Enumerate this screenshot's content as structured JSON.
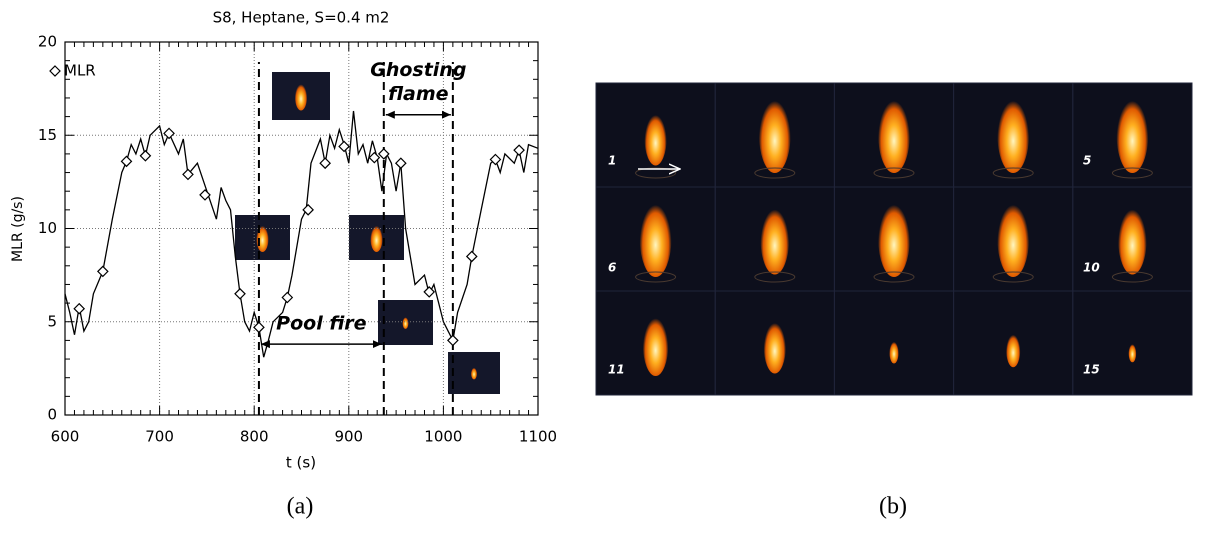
{
  "chart_data": {
    "type": "line",
    "title": "S8, Heptane, S=0.4 m2",
    "xlabel": "t (s)",
    "ylabel": "MLR (g/s)",
    "xlim": [
      600,
      1100
    ],
    "xticks": [
      600,
      700,
      800,
      900,
      1000,
      1100
    ],
    "ylim": [
      0,
      20
    ],
    "yticks": [
      0,
      5,
      10,
      15,
      20
    ],
    "grid": true,
    "legend": "upper left",
    "series": [
      {
        "color": "#000000",
        "marker": null,
        "x": [
          600,
          605,
          610,
          615,
          620,
          625,
          630,
          640,
          650,
          660,
          665,
          670,
          675,
          680,
          685,
          690,
          700,
          705,
          710,
          720,
          725,
          730,
          740,
          750,
          760,
          765,
          770,
          775,
          780,
          785,
          790,
          795,
          800,
          805,
          810,
          815,
          820,
          830,
          835,
          840,
          850,
          855,
          860,
          870,
          875,
          880,
          885,
          890,
          895,
          900,
          905,
          910,
          915,
          920,
          925,
          930,
          935,
          940,
          945,
          950,
          955,
          960,
          970,
          980,
          985,
          990,
          995,
          1000,
          1005,
          1010,
          1015,
          1025,
          1030,
          1040,
          1050,
          1055,
          1060,
          1065,
          1075,
          1080,
          1085,
          1090,
          1100
        ],
        "values": [
          6.5,
          5.5,
          4.3,
          5.8,
          4.5,
          5.0,
          6.5,
          7.7,
          10.5,
          13.0,
          13.6,
          14.5,
          14.0,
          14.8,
          13.9,
          15.0,
          15.5,
          14.5,
          15.1,
          14.0,
          14.8,
          12.9,
          13.5,
          12.0,
          10.5,
          12.2,
          11.5,
          11.0,
          8.5,
          6.5,
          5.0,
          4.5,
          5.5,
          4.7,
          3.1,
          4.0,
          5.0,
          5.5,
          6.3,
          7.5,
          10.5,
          11.0,
          13.5,
          14.8,
          13.5,
          15.0,
          14.3,
          15.3,
          14.5,
          13.5,
          16.3,
          14.0,
          14.5,
          13.5,
          14.7,
          13.8,
          12.0,
          14.0,
          13.5,
          12.0,
          13.5,
          10.0,
          7.0,
          7.5,
          6.5,
          7.0,
          6.0,
          5.0,
          4.5,
          4.0,
          5.5,
          7.0,
          8.5,
          11.0,
          13.5,
          13.7,
          13.0,
          14.0,
          13.5,
          14.2,
          13.0,
          14.5,
          14.3
        ]
      },
      {
        "name": "MLR",
        "color": "#000000",
        "marker": "diamond",
        "line": false,
        "x": [
          615,
          640,
          665,
          685,
          710,
          730,
          748,
          785,
          805,
          835,
          857,
          875,
          895,
          927,
          937,
          955,
          985,
          1010,
          1030,
          1055,
          1080
        ],
        "values": [
          5.7,
          7.7,
          13.6,
          13.9,
          15.1,
          12.9,
          11.8,
          6.5,
          4.7,
          6.3,
          11.0,
          13.5,
          14.4,
          13.8,
          14.0,
          13.5,
          6.6,
          4.0,
          8.5,
          13.7,
          14.2
        ]
      }
    ],
    "vlines": [
      805,
      937,
      1010
    ],
    "annotations": [
      {
        "text": [
          "Pool fire"
        ],
        "x": [
          805,
          937
        ],
        "y": 3.8
      },
      {
        "text": [
          "Ghosting",
          "flame"
        ],
        "x": [
          937,
          1010
        ],
        "y": 16.1
      }
    ]
  },
  "photos": {
    "labels": [
      "1",
      "5",
      "6",
      "10",
      "11",
      "15"
    ]
  },
  "panel_labels": [
    "(a)",
    "(b)"
  ]
}
